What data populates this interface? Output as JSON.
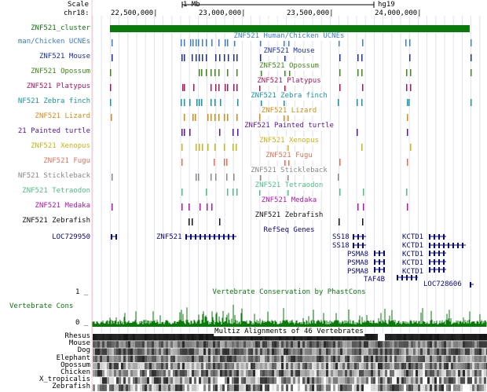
{
  "ruler": {
    "scale_label": "Scale",
    "chrom_label": "chr18:",
    "scale_bar_text": "1 Mb",
    "assembly": "hg19",
    "positions": [
      "22,500,000|",
      "23,000,000|",
      "23,500,000|",
      "24,000,000|"
    ]
  },
  "cluster": {
    "label": "ZNF521_cluster",
    "title": "ZNF521_cluster",
    "color": "#0a7a0a"
  },
  "tracks": [
    {
      "label": "man/Chicken UCNEs",
      "title": "ZNF521 Human/Chicken UCNEs",
      "color": "#3a7cd6"
    },
    {
      "label": "ZNF521 Mouse",
      "title": "ZNF521 Mouse",
      "color": "#1a2ea8"
    },
    {
      "label": "ZNF521 Opossum",
      "title": "ZNF521 Opossum",
      "color": "#3d8a14"
    },
    {
      "label": "ZNF521 Platypus",
      "title": "ZNF521 Platypus",
      "color": "#b0125a"
    },
    {
      "label": "NF521 Zebra finch",
      "title": "ZNF521 Zebra finch",
      "color": "#1496a8"
    },
    {
      "label": "ZNF521 Lizard",
      "title": "ZNF521 Lizard",
      "color": "#d88a10"
    },
    {
      "label": "21 Painted turtle",
      "title": "ZNF521 Painted turtle",
      "color": "#5a12a8"
    },
    {
      "label": "ZNF521 Xenopus",
      "title": "ZNF521 Xenopus",
      "color": "#c8b412"
    },
    {
      "label": "ZNF521 Fugu",
      "title": "ZNF521 Fugu",
      "color": "#e0705a"
    },
    {
      "label": "NF521 Stickleback",
      "title": "ZNF521 Stickleback",
      "color": "#888888"
    },
    {
      "label": "ZNF521 Tetraodon",
      "title": "ZNF521 Tetraodon",
      "color": "#4ec082"
    },
    {
      "label": "ZNF521 Medaka",
      "title": "ZNF521 Medaka",
      "color": "#b412b4"
    },
    {
      "label": "ZNF521 Zebrafish",
      "title": "ZNF521 Zebrafish",
      "color": "#111111"
    }
  ],
  "refseq": {
    "title": "RefSeq Genes",
    "left_label": "LOC729950",
    "genes": [
      "ZNF521",
      "SS18",
      "SS18",
      "PSMA8",
      "PSMA8",
      "PSMA8",
      "TAF4B",
      "KCTD1",
      "KCTD1",
      "KCTD1",
      "KCTD1",
      "KCTD1",
      "LOC728606"
    ],
    "color": "#0a0a80"
  },
  "conservation": {
    "title": "Vertebrate Conservation by PhastCons",
    "label": "Vertebrate Cons",
    "y_max": "1 _",
    "y_min": "0 _",
    "color": "#0a7a0a"
  },
  "multiz": {
    "title": "Multiz Alignments of 46 Vertebrates",
    "species": [
      "Rhesus",
      "Mouse",
      "Dog",
      "Elephant",
      "Opossum",
      "Chicken",
      "X_tropicalis",
      "Zebrafish"
    ]
  }
}
